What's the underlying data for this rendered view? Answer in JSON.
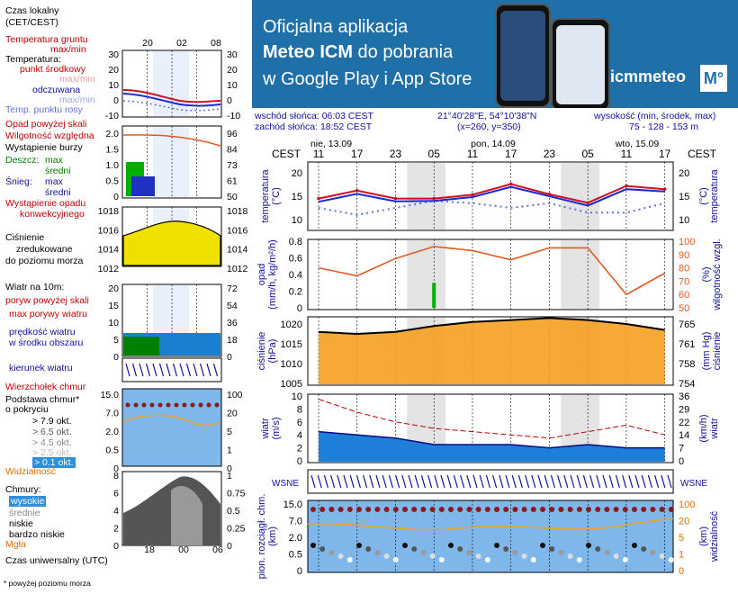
{
  "banner": {
    "line1": "Oficjalna aplikacja",
    "line2_bold": "Meteo ICM",
    "line2_rest": " do pobrania",
    "line3": "w Google Play i App Store",
    "brand": "icmmeteo",
    "brand_mark": "M°"
  },
  "info": {
    "sunrise": "wschód słońca: 06:03 CEST",
    "sunset": "zachód słońca: 18:52 CEST",
    "coords": "21°40'28\"E, 54°10'38\"N",
    "grid": "(x=260,  y=350)",
    "elevation_label": "wysokość (min, środek, max)",
    "elevation_values": "75 - 128 - 153 m"
  },
  "legend": {
    "local_time_l1": "Czas lokalny",
    "local_time_l2": "(CET/CEST)",
    "ground_temp_l1": "Temperatura gruntu",
    "ground_temp_l2": "max/min",
    "temperature": "Temperatura:",
    "mid_point": "punkt środkowy",
    "max_min": "max/min",
    "feels_like": "odczuwana",
    "max_min2": "max/min",
    "dew_point": "Temp. punktu rosy",
    "precip_over": "Opad powyżej skali",
    "humidity": "Wilgotność względna",
    "storm": "Wystąpienie burzy",
    "rain": "Deszcz:",
    "max": "max",
    "avg": "średni",
    "snow": "Śnieg:",
    "max_s": "max",
    "avg_s": "średni",
    "convective_l1": "Wystąpienie opadu",
    "convective_l2": "konwekcyjnego",
    "pressure_l1": "Ciśnienie",
    "pressure_l2": "zredukowane",
    "pressure_l3": "do poziomu morza",
    "wind": "Wiatr na 10m:",
    "gusts_over": "poryw powyżej skali",
    "max_gusts": "max porywy wiatru",
    "wind_speed_l1": "prędkość wiatru",
    "wind_speed_l2": "w środku obszaru",
    "wind_dir": "kierunek wiatru",
    "cloud_top": "Wierzchołek chmur",
    "cloud_base_l1": "Podstawa chmur*",
    "cloud_base_l2": "o pokryciu",
    "okt79": "> 7.9 okt.",
    "okt65": "> 6.5 okt.",
    "okt45": "> 4.5 okt.",
    "okt25": "> 2.5 okt.",
    "okt01": "> 0.1 okt.",
    "visibility": "Widzialność",
    "clouds": "Chmury:",
    "high": "wysokie",
    "mid": "średnie",
    "low": "niskie",
    "very_low": "bardzo niskie",
    "fog": "Mgła",
    "utc": "Czas uniwersalny (UTC)",
    "footnote": "* powyżej poziomu morza",
    "top_hours": [
      "20",
      "02",
      "08"
    ],
    "bottom_hours": [
      "18",
      "00",
      "06"
    ],
    "temp_ticks_l": [
      "30",
      "20",
      "10",
      "0",
      "-10"
    ],
    "temp_ticks_r": [
      "30",
      "20",
      "10",
      "0",
      "-10"
    ],
    "precip_ticks_l": [
      "2.0",
      "1.5",
      "1.0",
      "0.5",
      "0"
    ],
    "hum_ticks_r": [
      "96",
      "84",
      "73",
      "61",
      "50"
    ],
    "pres_ticks_l": [
      "1018",
      "1016",
      "1014",
      "1012"
    ],
    "pres_ticks_r": [
      "1018",
      "1016",
      "1014",
      "1012"
    ],
    "wind_ticks_l": [
      "20",
      "15",
      "10",
      "5",
      "0"
    ],
    "wind_ticks_r": [
      "72",
      "54",
      "36",
      "18",
      "0"
    ],
    "cb_ticks_l": [
      "15.0",
      "7.0",
      "2.0",
      "0.5",
      "0"
    ],
    "vis_ticks_r": [
      "100",
      "20",
      "5",
      "1",
      "0"
    ],
    "cl_ticks_l": [
      "8",
      "6",
      "4",
      "2",
      "0"
    ],
    "cl_ticks_r": [
      "1",
      "0.75",
      "0.5",
      "0.25",
      "0"
    ]
  },
  "chart": {
    "dates": [
      "nie, 13.09",
      "pon, 14.09",
      "wto, 15.09"
    ],
    "tz_left": "CEST",
    "tz_right": "CEST",
    "hours": [
      "11",
      "17",
      "23",
      "05",
      "11",
      "17",
      "23",
      "05",
      "11",
      "17"
    ],
    "temp_label": "temperatura",
    "temp_unit": "(°C)",
    "temp_ticks": [
      "20",
      "15",
      "10"
    ],
    "precip_label": "opad",
    "precip_unit": "(mm/h, kg/m²/h)",
    "hum_label": "wilgotność wzgl.",
    "hum_unit": "(%)",
    "precip_ticks": [
      "0.8",
      "0.6",
      "0.4",
      "0.2",
      "0"
    ],
    "hum_ticks": [
      "100",
      "90",
      "80",
      "70",
      "60",
      "50"
    ],
    "pres_label": "ciśnienie",
    "pres_unit": "(hPa)",
    "pres_unit_r": "(mm Hg)",
    "pres_ticks": [
      "1020",
      "1015",
      "1010",
      "1005"
    ],
    "pres_ticks_r": [
      "765",
      "761",
      "758",
      "754"
    ],
    "wind_label": "wiatr",
    "wind_unit": "(m/s)",
    "wind_unit_r": "(km/h)",
    "wind_ticks": [
      "10",
      "8",
      "6",
      "4",
      "2",
      "0"
    ],
    "wind_ticks_r": [
      "36",
      "29",
      "22",
      "14",
      "7",
      "0"
    ],
    "cb_label": "pion. rozciągł. chm.",
    "cb_unit": "(km)",
    "vis_label": "widzialność",
    "vis_unit": "(km)",
    "cb_ticks": [
      "15.0",
      "7.0",
      "2.0",
      "0.5",
      "0"
    ],
    "vis_ticks": [
      "100",
      "20",
      "5",
      "1",
      "0"
    ],
    "compass": "WSNE"
  },
  "colors": {
    "banner": "#1f6fa8",
    "temp": "#d01020",
    "feels": "#1a2ad0",
    "dew": "#6070e0",
    "humidity": "#e05a20",
    "pressure_fill": "#f5a020",
    "wind_fill": "#1e7fd8",
    "night": "#e4e4e4",
    "cloud_panel": "#7fb7ea"
  },
  "chart_data": {
    "type": "line",
    "x_hours_cest": [
      11,
      17,
      23,
      5,
      11,
      17,
      23,
      5,
      11,
      17
    ],
    "temperature_c": [
      14.5,
      16.2,
      14.5,
      14.5,
      15.3,
      17.6,
      15.4,
      13.6,
      17.2,
      16.5
    ],
    "feels_like_c": [
      13.8,
      15.5,
      13.9,
      14.0,
      14.8,
      17.0,
      15.0,
      13.0,
      16.5,
      16.0
    ],
    "dew_point_c": [
      12.5,
      11.0,
      12.5,
      14.0,
      13.5,
      12.5,
      13.5,
      11.5,
      11.5,
      13.5
    ],
    "humidity_pct": [
      80,
      74,
      87,
      96,
      93,
      86,
      95,
      95,
      60,
      76
    ],
    "pressure_hpa": [
      1018,
      1017.5,
      1018,
      1019.5,
      1020.5,
      1021,
      1021.5,
      1021,
      1020,
      1018.5
    ],
    "wind_ms": [
      4.5,
      4.0,
      3.5,
      2.5,
      2.5,
      2.5,
      2.0,
      2.5,
      2.0,
      2.0
    ],
    "wind_gusts_ms": [
      9.5,
      7.5,
      6.0,
      5.0,
      4.5,
      4.0,
      3.5,
      4.5,
      5.5,
      4.0
    ],
    "precip_mm": [
      0,
      0,
      0,
      0.3,
      0,
      0,
      0,
      0,
      0,
      0
    ],
    "ylim_temp": [
      10,
      22
    ],
    "ylim_pressure": [
      1005,
      1022
    ],
    "ylim_wind": [
      0,
      10
    ],
    "ylim_humidity": [
      50,
      100
    ]
  }
}
